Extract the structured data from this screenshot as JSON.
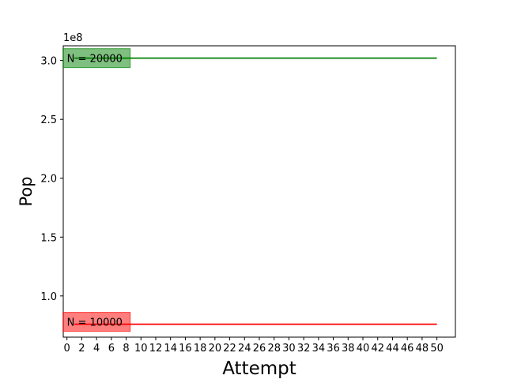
{
  "chart_data": {
    "type": "line",
    "title": "",
    "xlabel": "Attempt",
    "ylabel": "Pop",
    "y_offset_label": "1e8",
    "xlim": [
      -0.5,
      52.5
    ],
    "ylim": [
      0.65,
      3.125
    ],
    "y_ticks": [
      1.0,
      1.5,
      2.0,
      2.5,
      3.0
    ],
    "y_tick_labels": [
      "1.0",
      "1.5",
      "2.0",
      "2.5",
      "3.0"
    ],
    "x_ticks": [
      0,
      2,
      4,
      6,
      8,
      10,
      12,
      14,
      16,
      18,
      20,
      22,
      24,
      26,
      28,
      30,
      32,
      34,
      36,
      38,
      40,
      42,
      44,
      46,
      48,
      50
    ],
    "x_tick_labels": [
      "0",
      "2",
      "4",
      "6",
      "8",
      "10",
      "12",
      "14",
      "16",
      "18",
      "20",
      "22",
      "24",
      "26",
      "28",
      "30",
      "32",
      "34",
      "36",
      "38",
      "40",
      "42",
      "44",
      "46",
      "48",
      "50"
    ],
    "grid": false,
    "series": [
      {
        "name": "N = 20000",
        "color": "#008000",
        "x": [
          1,
          50
        ],
        "y": [
          3.02,
          3.02
        ]
      },
      {
        "name": "N = 10000",
        "color": "#ff0000",
        "x": [
          1,
          50
        ],
        "y": [
          0.76,
          0.76
        ]
      }
    ],
    "annotations": [
      {
        "text": "N = 20000",
        "color": "#008000",
        "x": 0,
        "y": 3.02
      },
      {
        "text": "N = 10000",
        "color": "#ff0000",
        "x": 0,
        "y": 0.78
      }
    ]
  }
}
